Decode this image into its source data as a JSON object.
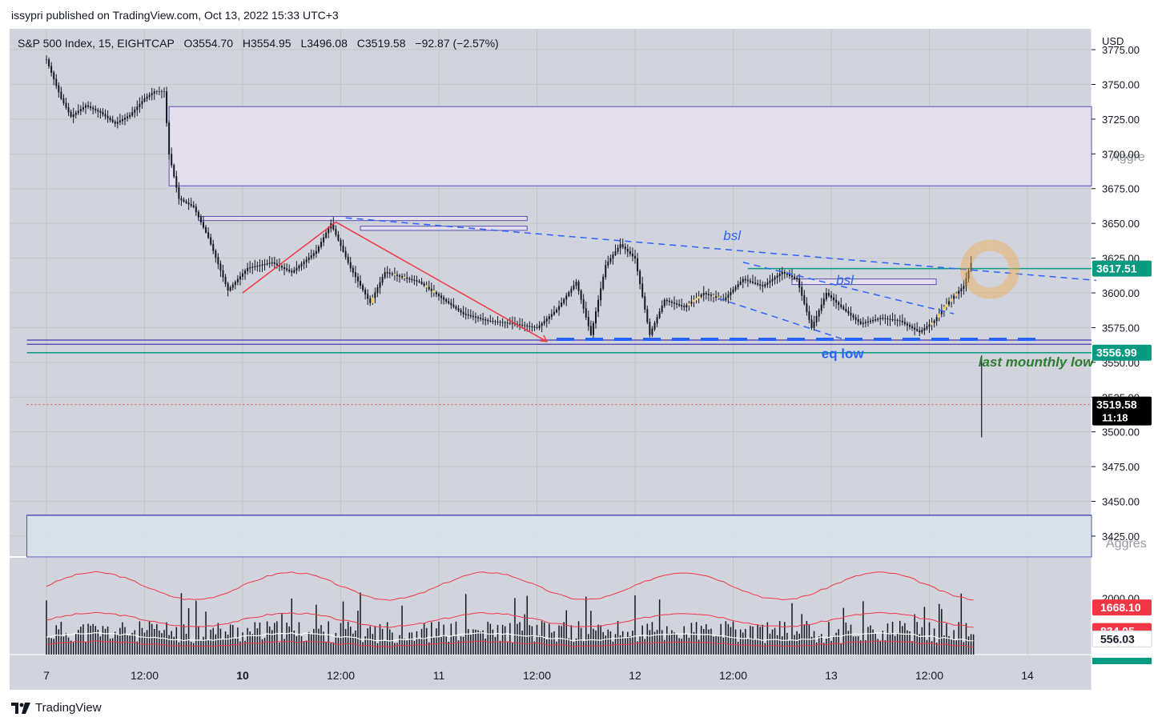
{
  "header": {
    "publisher": "issypri published on TradingView.com, Oct 13, 2022 15:33 UTC+3"
  },
  "legend": {
    "symbol": "S&P 500 Index, 15, EIGHTCAP",
    "open": "O3554.70",
    "high": "H3554.95",
    "low": "L3496.08",
    "close": "C3519.58",
    "change": "−92.87 (−2.57%)"
  },
  "currency": "USD",
  "chart_data": {
    "type": "line",
    "title": "S&P 500 Index, 15, EIGHTCAP",
    "price_axis": {
      "ticks": [
        "3775.00",
        "3750.00",
        "3725.00",
        "3700.00",
        "3675.00",
        "3650.00",
        "3625.00",
        "3600.00",
        "3575.00",
        "3550.00",
        "3525.00",
        "3500.00",
        "3475.00",
        "3450.00",
        "3425.00"
      ],
      "tick_values": [
        3775,
        3750,
        3725,
        3700,
        3675,
        3650,
        3625,
        3600,
        3575,
        3550,
        3525,
        3500,
        3475,
        3450,
        3425
      ],
      "ylim": [
        3410,
        3790
      ]
    },
    "time_axis": {
      "labels": [
        "7",
        "12:00",
        "10",
        "12:00",
        "11",
        "12:00",
        "12",
        "12:00",
        "13",
        "12:00",
        "14"
      ],
      "bold": [
        false,
        false,
        true,
        false,
        false,
        false,
        false,
        false,
        false,
        false,
        false
      ],
      "positions": [
        0,
        1,
        2,
        3,
        4,
        5,
        6,
        7,
        8,
        9,
        10
      ]
    },
    "price_path": [
      [
        0,
        3768
      ],
      [
        0.15,
        3740
      ],
      [
        0.25,
        3727
      ],
      [
        0.4,
        3735
      ],
      [
        0.55,
        3730
      ],
      [
        0.7,
        3722
      ],
      [
        0.85,
        3728
      ],
      [
        1,
        3740
      ],
      [
        1.1,
        3745
      ],
      [
        1.2,
        3745
      ],
      [
        1.25,
        3700
      ],
      [
        1.35,
        3668
      ],
      [
        1.5,
        3662
      ],
      [
        1.65,
        3640
      ],
      [
        1.85,
        3602
      ],
      [
        2.05,
        3618
      ],
      [
        2.3,
        3622
      ],
      [
        2.5,
        3615
      ],
      [
        2.75,
        3630
      ],
      [
        2.9,
        3650
      ],
      [
        3.1,
        3618
      ],
      [
        3.3,
        3593
      ],
      [
        3.45,
        3615
      ],
      [
        3.6,
        3612
      ],
      [
        3.8,
        3608
      ],
      [
        4.0,
        3598
      ],
      [
        4.25,
        3585
      ],
      [
        4.5,
        3580
      ],
      [
        4.75,
        3578
      ],
      [
        5.0,
        3575
      ],
      [
        5.2,
        3588
      ],
      [
        5.4,
        3608
      ],
      [
        5.55,
        3570
      ],
      [
        5.7,
        3620
      ],
      [
        5.85,
        3635
      ],
      [
        6.0,
        3625
      ],
      [
        6.15,
        3570
      ],
      [
        6.3,
        3595
      ],
      [
        6.5,
        3590
      ],
      [
        6.7,
        3600
      ],
      [
        6.9,
        3595
      ],
      [
        7.1,
        3610
      ],
      [
        7.3,
        3605
      ],
      [
        7.5,
        3615
      ],
      [
        7.65,
        3610
      ],
      [
        7.8,
        3575
      ],
      [
        7.95,
        3600
      ],
      [
        8.1,
        3590
      ],
      [
        8.3,
        3578
      ],
      [
        8.5,
        3582
      ],
      [
        8.7,
        3580
      ],
      [
        8.9,
        3572
      ],
      [
        9.05,
        3580
      ],
      [
        9.15,
        3590
      ],
      [
        9.25,
        3598
      ],
      [
        9.35,
        3605
      ],
      [
        9.45,
        3627
      ],
      [
        9.5,
        3519.58
      ]
    ],
    "last_candle": {
      "open": 3554.7,
      "high": 3554.95,
      "low": 3496.08,
      "close": 3519.58
    },
    "price_labels": [
      {
        "text": "3617.51",
        "value": 3617.51,
        "color": "#089981"
      },
      {
        "text": "3556.99",
        "value": 3556.99,
        "color": "#089981"
      },
      {
        "text": "3519.58",
        "value": 3519.58,
        "color": "#000000",
        "sub": "11:18"
      }
    ],
    "horizontal_lines": [
      {
        "value": 3617.51,
        "color": "#089981",
        "style": "solid",
        "from": 7.15
      },
      {
        "value": 3556.99,
        "color": "#089981",
        "style": "solid",
        "from": -0.2
      },
      {
        "value": 3566,
        "color": "#5b4fb3",
        "style": "solid",
        "from": -0.2
      },
      {
        "value": 3563,
        "color": "#5b4fb3",
        "style": "solid",
        "from": -0.2
      },
      {
        "value": 3519.58,
        "color": "#ef5350",
        "style": "dotted",
        "from": -0.2
      },
      {
        "value": 3440,
        "color": "#5b4fb3",
        "style": "solid",
        "from": -0.2
      }
    ],
    "zones": [
      {
        "name": "aggressive-zone-top",
        "y1": 3734,
        "y2": 3677,
        "x1": 1.25,
        "x2": 11.0,
        "fill": "#e6e0ee",
        "stroke": "#5b4fb3"
      },
      {
        "name": "aggressive-zone-bottom",
        "y1": 3440,
        "y2": 3410,
        "x1": -0.2,
        "x2": 11.0,
        "fill": "#d8e3ea",
        "stroke": "#5b4fb3"
      },
      {
        "name": "bsl-box-1",
        "y1": 3655,
        "y2": 3652,
        "x1": 1.55,
        "x2": 4.9,
        "fill": "#e6e0ee",
        "stroke": "#5b4fb3"
      },
      {
        "name": "bsl-box-2",
        "y1": 3648,
        "y2": 3645,
        "x1": 3.2,
        "x2": 4.9,
        "fill": "#e6e0ee",
        "stroke": "#5b4fb3"
      },
      {
        "name": "bsl-box-3",
        "y1": 3610,
        "y2": 3606,
        "x1": 7.6,
        "x2": 9.07,
        "fill": "#e6e0ee",
        "stroke": "#5b4fb3"
      }
    ],
    "trendlines": [
      {
        "name": "bsl-dashed-upper",
        "points": [
          [
            3.05,
            3654
          ],
          [
            10.7,
            3609
          ]
        ],
        "color": "#2962ff",
        "style": "dashed"
      },
      {
        "name": "bsl-dashed-lower",
        "points": [
          [
            7.1,
            3622
          ],
          [
            9.25,
            3585
          ]
        ],
        "color": "#2962ff",
        "style": "dashed"
      },
      {
        "name": "channel-dashed-lower",
        "points": [
          [
            6.85,
            3596
          ],
          [
            8.15,
            3566
          ]
        ],
        "color": "#2962ff",
        "style": "dashed"
      },
      {
        "name": "red-swing-1",
        "points": [
          [
            2.0,
            3600
          ],
          [
            2.95,
            3651
          ]
        ],
        "color": "#f23645",
        "style": "solid"
      },
      {
        "name": "red-swing-2",
        "points": [
          [
            2.95,
            3651
          ],
          [
            5.1,
            3565
          ]
        ],
        "color": "#f23645",
        "style": "solid"
      }
    ],
    "eq_low_line": {
      "value": 3566,
      "from": 5.2,
      "to": 10.1
    },
    "annotations": [
      {
        "text": "bsl",
        "x": 6.9,
        "value": 3638,
        "color": "#2962ff",
        "italic": true
      },
      {
        "text": "bsl",
        "x": 8.05,
        "value": 3606,
        "color": "#2962ff",
        "italic": true
      },
      {
        "text": "eq low",
        "x": 7.9,
        "value": 3553,
        "color": "#2962ff",
        "italic": false
      },
      {
        "text": "last mounthly low",
        "x": 9.5,
        "value": 3547,
        "color": "#2e7d32",
        "italic": true
      },
      {
        "text": "Aggre",
        "x": 10.85,
        "value": 3695,
        "color": "#9598a1",
        "italic": false
      },
      {
        "text": "Aggres",
        "x": 10.8,
        "value": 3417,
        "color": "#9598a1",
        "italic": false
      }
    ],
    "highlight_circle": {
      "x": 9.62,
      "value": 3617,
      "color": "#f5a623"
    },
    "volume": {
      "tick": "2000.00",
      "tick_value": 2000,
      "labels": [
        {
          "text": "1668.10",
          "value": 1668.1,
          "color": "#f23645"
        },
        {
          "text": "834.05",
          "value": 834.05,
          "color": "#f23645"
        },
        {
          "text": "556.03",
          "value": 556.03,
          "color": "#ffffff"
        }
      ],
      "ylim": [
        0,
        3400
      ]
    }
  }
}
